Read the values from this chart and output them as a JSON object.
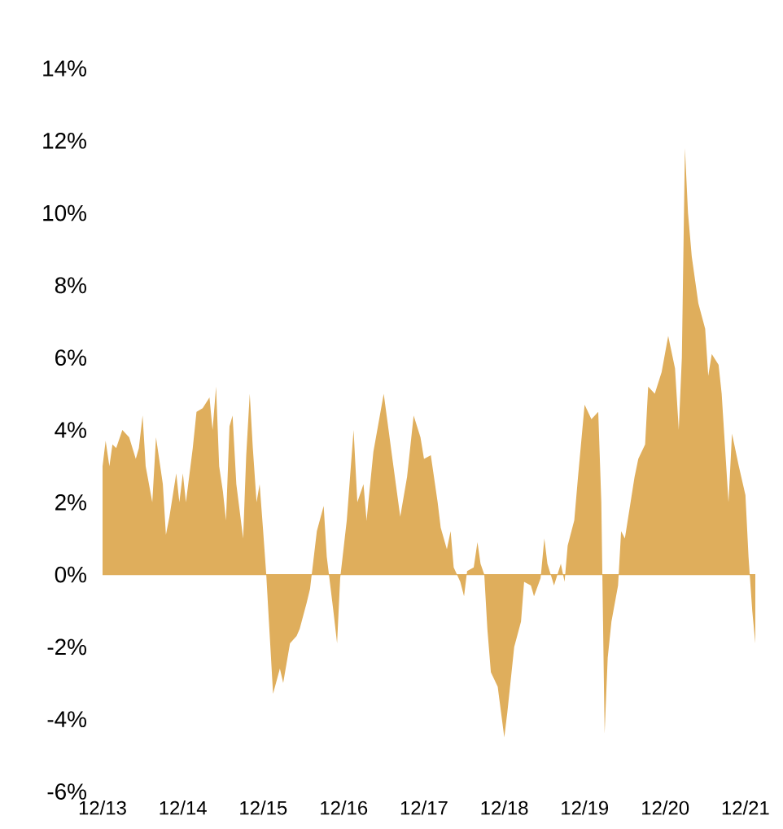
{
  "chart_data": {
    "type": "area",
    "color": "#dfae5c",
    "ref_lines": [
      {
        "axis": "y",
        "value": 0,
        "color": "#dfae5c"
      }
    ],
    "xlim": [
      "2013-12-01",
      "2022-01-15"
    ],
    "ylim": [
      -6,
      14
    ],
    "xticks": [
      {
        "value": "2013-12-01",
        "label": "12/13"
      },
      {
        "value": "2014-12-01",
        "label": "12/14"
      },
      {
        "value": "2015-12-01",
        "label": "12/15"
      },
      {
        "value": "2016-12-01",
        "label": "12/16"
      },
      {
        "value": "2017-12-01",
        "label": "12/17"
      },
      {
        "value": "2018-12-01",
        "label": "12/18"
      },
      {
        "value": "2019-12-01",
        "label": "12/19"
      },
      {
        "value": "2020-12-01",
        "label": "12/20"
      },
      {
        "value": "2021-12-01",
        "label": "12/21"
      }
    ],
    "yticks": [
      {
        "value": -6,
        "label": "-6%"
      },
      {
        "value": -4,
        "label": "-4%"
      },
      {
        "value": -2,
        "label": "-2%"
      },
      {
        "value": 0,
        "label": "0%"
      },
      {
        "value": 2,
        "label": "2%"
      },
      {
        "value": 4,
        "label": "4%"
      },
      {
        "value": 6,
        "label": "6%"
      },
      {
        "value": 8,
        "label": "8%"
      },
      {
        "value": 10,
        "label": "10%"
      },
      {
        "value": 12,
        "label": "12%"
      },
      {
        "value": 14,
        "label": "14%"
      }
    ],
    "x": [
      "2013-12-01",
      "2013-12-15",
      "2014-01-01",
      "2014-01-15",
      "2014-02-01",
      "2014-03-01",
      "2014-04-01",
      "2014-05-01",
      "2014-05-15",
      "2014-06-01",
      "2014-06-15",
      "2014-07-15",
      "2014-08-01",
      "2014-09-01",
      "2014-09-15",
      "2014-10-01",
      "2014-11-01",
      "2014-11-15",
      "2014-12-01",
      "2014-12-15",
      "2015-01-15",
      "2015-02-01",
      "2015-03-01",
      "2015-04-01",
      "2015-04-15",
      "2015-05-01",
      "2015-05-15",
      "2015-06-01",
      "2015-06-15",
      "2015-07-01",
      "2015-07-15",
      "2015-08-01",
      "2015-09-01",
      "2015-09-15",
      "2015-10-01",
      "2015-10-15",
      "2015-11-01",
      "2015-11-15",
      "2015-12-01",
      "2015-12-15",
      "2016-01-15",
      "2016-02-15",
      "2016-03-01",
      "2016-04-01",
      "2016-05-01",
      "2016-05-15",
      "2016-06-15",
      "2016-07-01",
      "2016-08-01",
      "2016-09-01",
      "2016-09-15",
      "2016-10-15",
      "2016-11-01",
      "2016-11-15",
      "2016-12-15",
      "2017-01-15",
      "2017-02-01",
      "2017-03-01",
      "2017-03-15",
      "2017-04-15",
      "2017-06-01",
      "2017-07-15",
      "2017-08-15",
      "2017-09-15",
      "2017-10-15",
      "2017-11-15",
      "2017-12-01",
      "2018-01-01",
      "2018-02-01",
      "2018-02-15",
      "2018-03-15",
      "2018-04-01",
      "2018-04-15",
      "2018-05-15",
      "2018-06-01",
      "2018-06-15",
      "2018-07-15",
      "2018-08-01",
      "2018-08-15",
      "2018-09-01",
      "2018-09-15",
      "2018-10-01",
      "2018-11-01",
      "2018-12-01",
      "2018-12-15",
      "2019-01-15",
      "2019-02-15",
      "2019-03-01",
      "2019-04-01",
      "2019-04-15",
      "2019-05-15",
      "2019-06-01",
      "2019-06-15",
      "2019-07-15",
      "2019-08-15",
      "2019-09-01",
      "2019-09-15",
      "2019-10-15",
      "2019-11-01",
      "2019-12-01",
      "2020-01-01",
      "2020-02-01",
      "2020-02-15",
      "2020-03-01",
      "2020-03-15",
      "2020-04-01",
      "2020-05-01",
      "2020-05-15",
      "2020-06-01",
      "2020-07-15",
      "2020-08-01",
      "2020-09-01",
      "2020-09-15",
      "2020-10-15",
      "2020-11-15",
      "2020-12-15",
      "2021-01-15",
      "2021-02-01",
      "2021-02-15",
      "2021-03-01",
      "2021-03-15",
      "2021-04-01",
      "2021-05-01",
      "2021-06-01",
      "2021-06-15",
      "2021-07-01",
      "2021-08-01",
      "2021-08-15",
      "2021-09-15",
      "2021-10-01",
      "2021-11-01",
      "2021-12-01",
      "2021-12-15",
      "2022-01-01",
      "2022-01-15"
    ],
    "values": [
      3.0,
      3.7,
      3.0,
      3.6,
      3.5,
      4.0,
      3.8,
      3.2,
      3.5,
      4.4,
      3.0,
      2.0,
      3.8,
      2.5,
      1.1,
      1.6,
      2.8,
      2.0,
      2.8,
      2.0,
      3.5,
      4.5,
      4.6,
      4.9,
      4.0,
      5.2,
      3.0,
      2.3,
      1.5,
      4.1,
      4.4,
      2.5,
      1.0,
      3.3,
      5.0,
      3.5,
      2.0,
      2.5,
      1.2,
      0.0,
      -3.3,
      -2.6,
      -3.0,
      -1.9,
      -1.7,
      -1.5,
      -0.8,
      -0.4,
      1.2,
      1.9,
      0.5,
      -1.0,
      -1.9,
      -0.1,
      1.5,
      4.0,
      2.0,
      2.5,
      1.5,
      3.4,
      5.0,
      3.0,
      1.6,
      2.7,
      4.4,
      3.8,
      3.2,
      3.3,
      2.0,
      1.3,
      0.7,
      1.2,
      0.2,
      -0.2,
      -0.6,
      0.1,
      0.2,
      0.9,
      0.3,
      0.0,
      -1.5,
      -2.7,
      -3.1,
      -4.5,
      -3.8,
      -2.0,
      -1.3,
      -0.2,
      -0.3,
      -0.6,
      -0.1,
      1.0,
      0.3,
      -0.3,
      0.3,
      -0.2,
      0.8,
      1.5,
      2.7,
      4.7,
      4.3,
      4.5,
      2.0,
      -4.4,
      -2.3,
      -1.3,
      -0.3,
      1.2,
      1.0,
      2.7,
      3.2,
      3.6,
      5.2,
      5.0,
      5.6,
      6.6,
      5.7,
      4.0,
      6.0,
      11.8,
      10.0,
      8.8,
      7.5,
      6.8,
      5.5,
      6.1,
      5.8,
      5.0,
      2.0,
      3.9,
      3.0,
      2.2,
      0.5,
      -1.0,
      -1.9
    ]
  }
}
